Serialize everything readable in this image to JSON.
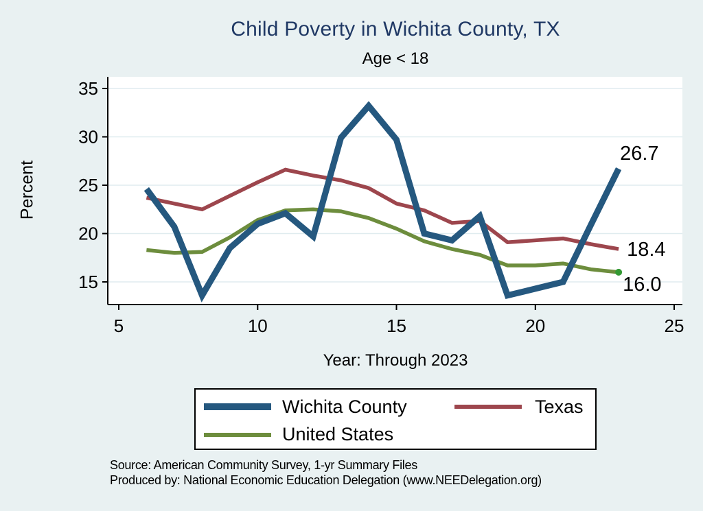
{
  "title": "Child Poverty in Wichita County, TX",
  "subtitle": "Age < 18",
  "source_line1": "Source: American Community Survey, 1-yr Summary Files",
  "source_line2": "Produced by: National Economic Education Delegation (www.NEEDelegation.org)",
  "colors": {
    "background": "#e9f1f2",
    "plot_background": "#ffffff",
    "gridline": "#e0ecef",
    "axis": "#000000",
    "title": "#1f3864",
    "wichita": "#25587f",
    "texas": "#9d464d",
    "us": "#6d8d3d",
    "us_end_dot": "#339933"
  },
  "chart_data": {
    "type": "line",
    "title": "Child Poverty in Wichita County, TX",
    "subtitle": "Age < 18",
    "xlabel": "Year: Through 2023",
    "ylabel": "Percent",
    "x_ticks": [
      5,
      10,
      15,
      20,
      25
    ],
    "y_ticks": [
      15,
      20,
      25,
      30,
      35
    ],
    "xlim": [
      4.6,
      25.3
    ],
    "ylim": [
      12.2,
      36.5
    ],
    "grid": "horizontal",
    "legend_position": "below-plot",
    "x": [
      6,
      7,
      8,
      9,
      10,
      11,
      12,
      13,
      14,
      15,
      16,
      17,
      18,
      19,
      20,
      21,
      22,
      23
    ],
    "series": [
      {
        "name": "Wichita County",
        "color": "#25587f",
        "line_width": 9,
        "end_label": "26.7",
        "end_marker": false,
        "values": [
          24.6,
          20.7,
          13.6,
          18.5,
          21.0,
          22.1,
          19.7,
          29.9,
          33.2,
          29.7,
          20.0,
          19.3,
          21.8,
          13.6,
          14.3,
          15.0,
          20.9,
          26.7
        ]
      },
      {
        "name": "Texas",
        "color": "#9d464d",
        "line_width": 5.5,
        "end_label": "18.4",
        "end_marker": false,
        "values": [
          23.7,
          23.1,
          22.5,
          23.9,
          25.3,
          26.6,
          26.0,
          25.5,
          24.7,
          23.1,
          22.4,
          21.1,
          21.3,
          19.1,
          19.3,
          19.5,
          18.9,
          18.4
        ]
      },
      {
        "name": "United States",
        "color": "#6d8d3d",
        "line_width": 5.5,
        "end_label": "16.0",
        "end_marker": true,
        "values": [
          18.3,
          18.0,
          18.1,
          19.6,
          21.4,
          22.4,
          22.5,
          22.3,
          21.6,
          20.5,
          19.2,
          18.4,
          17.8,
          16.7,
          16.7,
          16.9,
          16.3,
          16.0
        ]
      }
    ]
  }
}
